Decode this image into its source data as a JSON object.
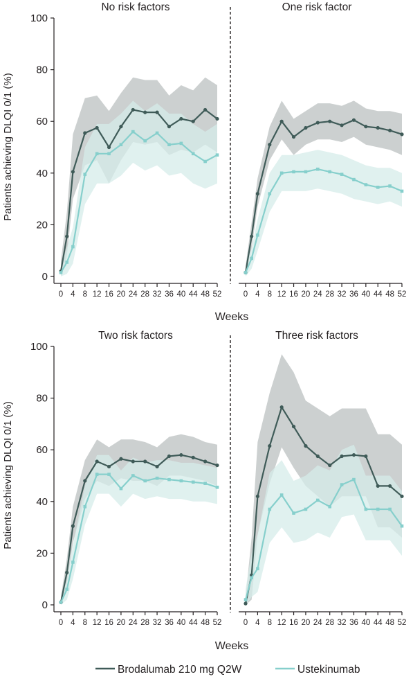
{
  "figure": {
    "colors": {
      "brodalumab": "#3f5b58",
      "ustekinumab": "#86cfcc",
      "brodalumab_band": "#c3c8c8",
      "ustekinumab_band": "#d6ecea"
    },
    "legend": [
      {
        "name": "Brodalumab 210 mg Q2W",
        "color": "#3f5b58"
      },
      {
        "name": "Ustekinumab",
        "color": "#86cfcc"
      }
    ],
    "xlabel_top": "Weeks",
    "xlabel_bottom": "Weeks"
  },
  "chart_data": [
    {
      "type": "line",
      "title": "No risk factors",
      "xlabel": "Weeks",
      "ylabel": "Patients achieving DLQI 0/1 (%)",
      "ylim": [
        0,
        100
      ],
      "x": [
        0,
        2,
        4,
        8,
        12,
        16,
        20,
        24,
        28,
        32,
        36,
        40,
        44,
        48,
        52
      ],
      "xticks": [
        0,
        4,
        8,
        12,
        16,
        20,
        24,
        28,
        32,
        36,
        40,
        44,
        48,
        52
      ],
      "yticks": [
        0,
        20,
        40,
        60,
        80,
        100
      ],
      "series": [
        {
          "name": "Brodalumab 210 mg Q2W",
          "values": [
            2,
            15.5,
            40.5,
            55.5,
            57.5,
            50,
            58,
            64.5,
            63.5,
            63.5,
            58,
            61,
            60,
            64.5,
            61
          ],
          "lower": [
            0,
            8,
            30,
            43,
            45,
            36,
            45,
            52,
            51,
            52,
            47,
            49,
            48,
            51,
            48
          ],
          "upper": [
            6,
            25,
            55,
            69,
            70,
            64,
            71,
            77,
            76,
            76,
            70,
            74,
            72,
            77,
            74
          ]
        },
        {
          "name": "Ustekinumab",
          "values": [
            1.5,
            5.5,
            11.5,
            39.5,
            47.5,
            47.5,
            51,
            56,
            52.5,
            55.5,
            51,
            51.5,
            47.5,
            44.5,
            47
          ],
          "lower": [
            0,
            1,
            5,
            28,
            36,
            36,
            39,
            44,
            41,
            43,
            39,
            40,
            36,
            34,
            36
          ],
          "upper": [
            4,
            11,
            19,
            50,
            59,
            59,
            63,
            68,
            64,
            67,
            63,
            63,
            59,
            56,
            59
          ]
        }
      ]
    },
    {
      "type": "line",
      "title": "One risk factor",
      "xlabel": "Weeks",
      "ylim": [
        0,
        100
      ],
      "x": [
        0,
        2,
        4,
        8,
        12,
        16,
        20,
        24,
        28,
        32,
        36,
        40,
        44,
        48,
        52
      ],
      "xticks": [
        0,
        4,
        8,
        12,
        16,
        20,
        24,
        28,
        32,
        36,
        40,
        44,
        48,
        52
      ],
      "series": [
        {
          "name": "Brodalumab 210 mg Q2W",
          "values": [
            1.5,
            15.5,
            32,
            51,
            60,
            54,
            57.5,
            59.5,
            60,
            58.5,
            60.5,
            58,
            57.5,
            56.5,
            55
          ],
          "lower": [
            0,
            11,
            27,
            45,
            53,
            47,
            51,
            53,
            53,
            52,
            54,
            51,
            50,
            49,
            47
          ],
          "upper": [
            4,
            21,
            38,
            58,
            68,
            61,
            64,
            67,
            67,
            66,
            68,
            65,
            64,
            64,
            63
          ]
        },
        {
          "name": "Ustekinumab",
          "values": [
            1.5,
            7,
            16,
            32,
            40,
            40.5,
            40.5,
            41.5,
            40.5,
            39.5,
            37.5,
            35.5,
            34.5,
            35,
            33
          ],
          "lower": [
            0,
            3,
            10,
            25,
            33,
            33,
            33,
            34,
            33,
            32,
            30,
            29,
            28,
            29,
            27
          ],
          "upper": [
            4,
            11,
            22,
            40,
            47,
            47,
            48,
            49,
            48,
            47,
            45,
            43,
            42,
            42,
            40
          ]
        }
      ]
    },
    {
      "type": "line",
      "title": "Two risk factors",
      "xlabel": "Weeks",
      "ylabel": "Patients achieving DLQI 0/1 (%)",
      "ylim": [
        0,
        100
      ],
      "x": [
        0,
        2,
        4,
        8,
        12,
        16,
        20,
        24,
        28,
        32,
        36,
        40,
        44,
        48,
        52
      ],
      "xticks": [
        0,
        4,
        8,
        12,
        16,
        20,
        24,
        28,
        32,
        36,
        40,
        44,
        48,
        52
      ],
      "yticks": [
        0,
        20,
        40,
        60,
        80,
        100
      ],
      "series": [
        {
          "name": "Brodalumab 210 mg Q2W",
          "values": [
            1,
            12.5,
            30.5,
            48,
            55.5,
            53.5,
            56.5,
            55.5,
            55.5,
            53.5,
            57.5,
            58,
            57,
            55.5,
            54
          ],
          "lower": [
            0,
            8,
            24,
            41,
            48,
            46,
            49,
            48,
            48,
            46,
            50,
            50,
            49,
            48,
            46
          ],
          "upper": [
            3,
            18,
            38,
            56,
            64,
            61,
            64,
            64,
            63,
            61,
            65,
            66,
            65,
            63,
            62
          ]
        },
        {
          "name": "Ustekinumab",
          "values": [
            1,
            6,
            16.5,
            38,
            50.5,
            50.5,
            45,
            50,
            48,
            49,
            48.5,
            48,
            47.5,
            47,
            45.5
          ],
          "lower": [
            0,
            2,
            10,
            31,
            43,
            43,
            38,
            43,
            41,
            42,
            41,
            41,
            40,
            40,
            39
          ],
          "upper": [
            3,
            10,
            23,
            46,
            58,
            58,
            52,
            57,
            55,
            56,
            56,
            55,
            55,
            54,
            53
          ]
        }
      ]
    },
    {
      "type": "line",
      "title": "Three risk factors",
      "xlabel": "Weeks",
      "ylim": [
        0,
        100
      ],
      "x": [
        0,
        2,
        4,
        8,
        12,
        16,
        20,
        24,
        28,
        32,
        36,
        40,
        44,
        48,
        52
      ],
      "xticks": [
        0,
        4,
        8,
        12,
        16,
        20,
        24,
        28,
        32,
        36,
        40,
        44,
        48,
        52
      ],
      "series": [
        {
          "name": "Brodalumab 210 mg Q2W",
          "values": [
            0.5,
            11.5,
            42,
            61.5,
            76.5,
            69,
            61.5,
            57.5,
            54,
            57.5,
            58,
            57.5,
            46,
            46,
            42
          ],
          "lower": [
            0,
            2,
            27,
            47,
            61,
            53,
            46,
            42,
            38,
            42,
            42,
            42,
            30,
            30,
            26
          ],
          "upper": [
            3,
            26,
            63,
            82,
            97,
            90,
            79,
            76,
            73,
            76,
            76,
            76,
            66,
            66,
            62
          ]
        },
        {
          "name": "Ustekinumab",
          "values": [
            2,
            10.5,
            14,
            37,
            42.5,
            35.5,
            37,
            40.5,
            38,
            46.5,
            48.5,
            37,
            37,
            37,
            30.5
          ],
          "lower": [
            0,
            3,
            5,
            24,
            30,
            24,
            25,
            28,
            26,
            34,
            35,
            25,
            25,
            25,
            19
          ],
          "upper": [
            6,
            20,
            27,
            51,
            56,
            48,
            50,
            54,
            52,
            60,
            62,
            50,
            50,
            50,
            44
          ]
        }
      ]
    }
  ]
}
